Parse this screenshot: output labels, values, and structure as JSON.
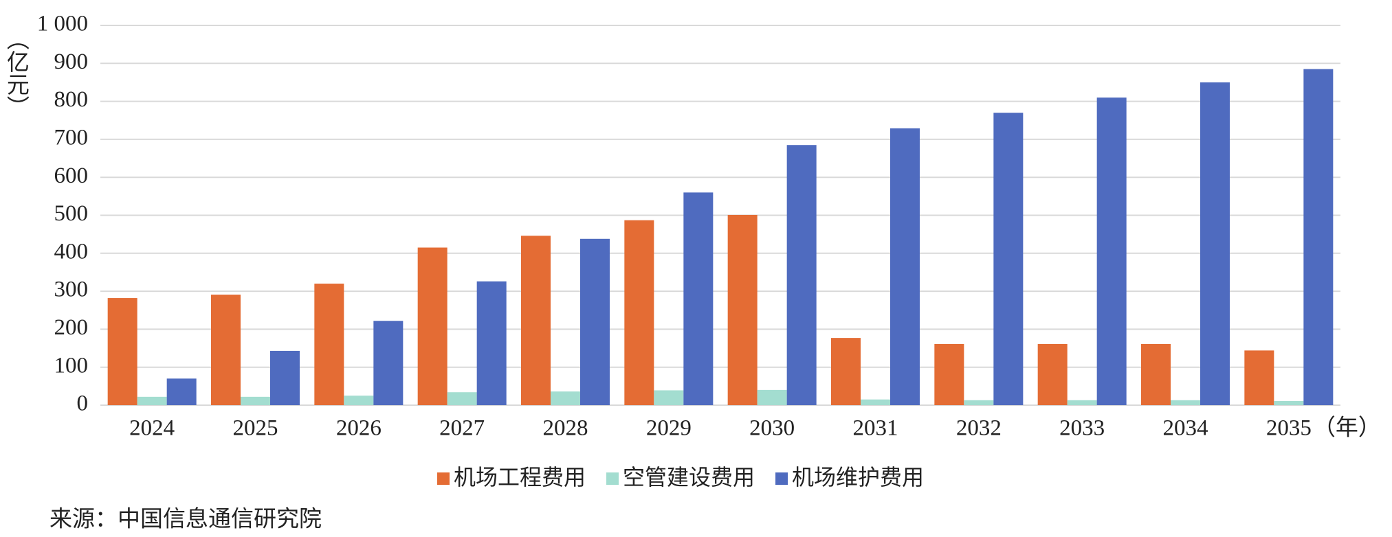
{
  "chart_data": {
    "type": "bar",
    "y_label": "（亿元）",
    "x_label": "（年）",
    "source": "来源：中国信息通信研究院",
    "categories": [
      "2024",
      "2025",
      "2026",
      "2027",
      "2028",
      "2029",
      "2030",
      "2031",
      "2032",
      "2033",
      "2034",
      "2035"
    ],
    "series": [
      {
        "name": "机场工程费用",
        "color": "#e46c34",
        "values": [
          282,
          291,
          320,
          415,
          446,
          487,
          501,
          177,
          161,
          161,
          161,
          144
        ]
      },
      {
        "name": "空管建设费用",
        "color": "#a3ddd0",
        "values": [
          22,
          22,
          25,
          34,
          36,
          39,
          40,
          15,
          13,
          13,
          13,
          11
        ]
      },
      {
        "name": "机场维护费用",
        "color": "#4f6bbf",
        "values": [
          70,
          143,
          222,
          326,
          438,
          560,
          685,
          729,
          770,
          810,
          850,
          885
        ]
      }
    ],
    "ylim": [
      0,
      1000
    ],
    "yticks": [
      0,
      100,
      200,
      300,
      400,
      500,
      600,
      700,
      800,
      900,
      {
        "value": 1000,
        "label": "1 000"
      }
    ],
    "grid": true
  }
}
